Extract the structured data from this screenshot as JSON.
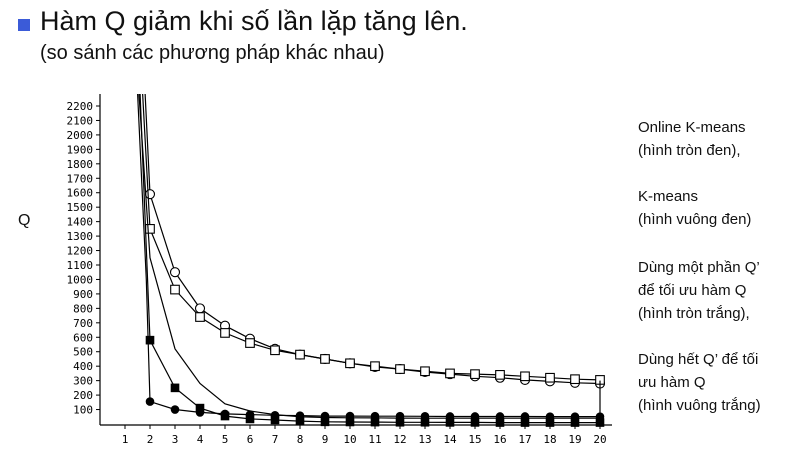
{
  "slide": {
    "title": "Hàm Q giảm khi số lần lặp tăng lên.",
    "subtitle": "(so sánh các phương pháp khác nhau)",
    "bullet_color": "#3b5bd8"
  },
  "legend": [
    {
      "lines": [
        "Online K-means",
        "(hình tròn đen),"
      ]
    },
    {
      "lines": [
        "K-means",
        "(hình vuông đen)"
      ]
    },
    {
      "lines": [
        "Dùng một phần Q’",
        "để tối ưu hàm Q",
        "(hình tròn trắng),"
      ]
    },
    {
      "lines": [
        "Dùng hết Q’ để tối",
        "ưu hàm Q",
        "(hình vuông trắng)"
      ]
    }
  ],
  "chart_data": {
    "type": "line",
    "ylabel": "Q",
    "xlabel": "",
    "x": [
      1,
      2,
      3,
      4,
      5,
      6,
      7,
      8,
      9,
      10,
      11,
      12,
      13,
      14,
      15,
      16,
      17,
      18,
      19,
      20
    ],
    "xlim": [
      1,
      20
    ],
    "ylim": [
      0,
      2200
    ],
    "yticks": [
      100,
      200,
      300,
      400,
      500,
      600,
      700,
      800,
      900,
      1000,
      1100,
      1200,
      1300,
      1400,
      1500,
      1600,
      1700,
      1800,
      1900,
      2000,
      2100,
      2200
    ],
    "grid": false,
    "series": [
      {
        "marker": "filled-circle",
        "x": [
          2,
          3,
          4,
          5,
          6,
          7,
          8,
          9,
          10,
          11,
          12,
          13,
          14,
          15,
          16,
          17,
          18,
          19,
          20
        ],
        "values": [
          155,
          100,
          80,
          70,
          65,
          60,
          58,
          55,
          55,
          54,
          54,
          53,
          52,
          52,
          52,
          52,
          51,
          51,
          51
        ],
        "lead_in": [
          [
            1.5,
            2300
          ],
          [
            1.85,
            1000
          ]
        ]
      },
      {
        "marker": "filled-square",
        "x": [
          2,
          3,
          4,
          5,
          6,
          7,
          8,
          9,
          10,
          11,
          12,
          13,
          14,
          15,
          16,
          17,
          18,
          19,
          20
        ],
        "values": [
          580,
          250,
          110,
          55,
          35,
          28,
          20,
          15,
          14,
          13,
          12,
          12,
          11,
          11,
          10,
          10,
          10,
          10,
          10
        ],
        "lead_in": [
          [
            1.6,
            2300
          ]
        ]
      },
      {
        "marker": "open-circle",
        "x": [
          2,
          3,
          4,
          5,
          6,
          7,
          8,
          9,
          10,
          11,
          12,
          13,
          14,
          15,
          16,
          17,
          18,
          19,
          20
        ],
        "values": [
          1590,
          1050,
          800,
          680,
          590,
          520,
          480,
          450,
          420,
          395,
          380,
          360,
          345,
          330,
          320,
          305,
          295,
          285,
          280
        ],
        "lead_in": [
          [
            1.8,
            2300
          ]
        ]
      },
      {
        "marker": "open-square",
        "x": [
          2,
          3,
          4,
          5,
          6,
          7,
          8,
          9,
          10,
          11,
          12,
          13,
          14,
          15,
          16,
          17,
          18,
          19,
          20
        ],
        "values": [
          1350,
          930,
          740,
          630,
          560,
          510,
          480,
          450,
          420,
          400,
          380,
          365,
          350,
          345,
          340,
          330,
          320,
          310,
          305
        ],
        "lead_in": [
          [
            1.7,
            2300
          ]
        ]
      },
      {
        "marker": "none",
        "x": [
          2,
          3,
          4,
          5,
          6,
          7,
          8,
          9,
          10,
          11,
          12,
          13,
          14,
          15,
          16,
          17,
          18,
          19,
          20
        ],
        "values": [
          1150,
          520,
          280,
          140,
          90,
          65,
          50,
          45,
          43,
          42,
          41,
          40,
          40,
          40,
          40,
          40,
          40,
          40,
          40
        ],
        "lead_in": [
          [
            1.55,
            2300
          ]
        ]
      },
      {
        "marker": "none",
        "x": [
          20,
          20
        ],
        "values": [
          300,
          10
        ]
      }
    ]
  }
}
